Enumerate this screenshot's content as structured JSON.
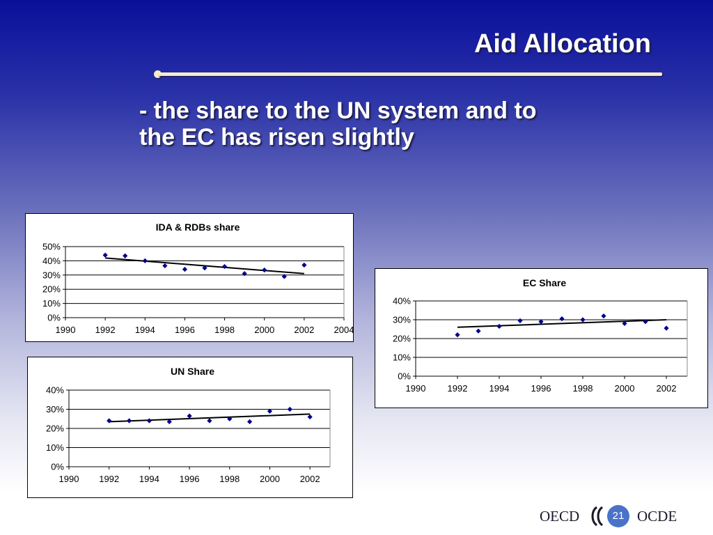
{
  "slide": {
    "title": "Aid Allocation",
    "subtitle_line1": "- the share to the UN system and to",
    "subtitle_line2": "the EC has risen slightly",
    "logo_left": "OECD",
    "logo_right": "OCDE",
    "page_number": "21"
  },
  "chart_data": [
    {
      "id": "ida",
      "type": "scatter",
      "title": "IDA & RDBs share",
      "xlim": [
        1990,
        2004
      ],
      "xticks": [
        "1990",
        "1992",
        "1994",
        "1996",
        "1998",
        "2000",
        "2002",
        "2004"
      ],
      "ylim": [
        0,
        0.5
      ],
      "yticks": [
        "0%",
        "10%",
        "20%",
        "30%",
        "40%",
        "50%"
      ],
      "grid": true,
      "x": [
        1992,
        1993,
        1994,
        1995,
        1996,
        1997,
        1998,
        1999,
        2000,
        2001,
        2002
      ],
      "y": [
        0.44,
        0.435,
        0.4,
        0.365,
        0.34,
        0.35,
        0.36,
        0.31,
        0.335,
        0.29,
        0.37
      ],
      "trendline": {
        "x": [
          1992,
          2002
        ],
        "y": [
          0.42,
          0.31
        ]
      },
      "marker_color": "#00008b"
    },
    {
      "id": "ec",
      "type": "scatter",
      "title": "EC Share",
      "xlim": [
        1990,
        2003
      ],
      "xticks": [
        "1990",
        "1992",
        "1994",
        "1996",
        "1998",
        "2000",
        "2002"
      ],
      "ylim": [
        0,
        0.4
      ],
      "yticks": [
        "0%",
        "10%",
        "20%",
        "30%",
        "40%"
      ],
      "grid": true,
      "x": [
        1992,
        1993,
        1994,
        1995,
        1996,
        1997,
        1998,
        1999,
        2000,
        2001,
        2002
      ],
      "y": [
        0.22,
        0.24,
        0.265,
        0.295,
        0.29,
        0.305,
        0.3,
        0.32,
        0.28,
        0.29,
        0.255
      ],
      "trendline": {
        "x": [
          1992,
          2002
        ],
        "y": [
          0.26,
          0.3
        ]
      },
      "marker_color": "#00008b"
    },
    {
      "id": "un",
      "type": "scatter",
      "title": "UN Share",
      "xlim": [
        1990,
        2003
      ],
      "xticks": [
        "1990",
        "1992",
        "1994",
        "1996",
        "1998",
        "2000",
        "2002"
      ],
      "ylim": [
        0,
        0.4
      ],
      "yticks": [
        "0%",
        "10%",
        "20%",
        "30%",
        "40%"
      ],
      "grid": true,
      "x": [
        1992,
        1993,
        1994,
        1995,
        1996,
        1997,
        1998,
        1999,
        2000,
        2001,
        2002
      ],
      "y": [
        0.24,
        0.24,
        0.24,
        0.235,
        0.265,
        0.24,
        0.25,
        0.235,
        0.29,
        0.3,
        0.26
      ],
      "trendline": {
        "x": [
          1992,
          2002
        ],
        "y": [
          0.235,
          0.275
        ]
      },
      "marker_color": "#00008b"
    }
  ]
}
